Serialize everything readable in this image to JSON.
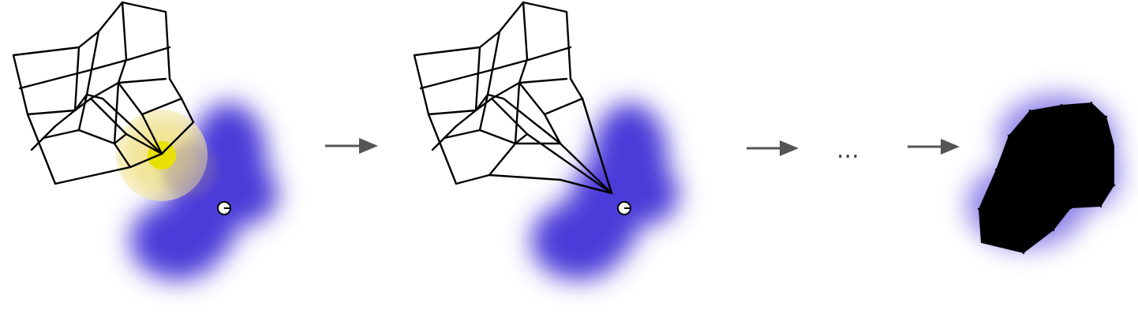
{
  "diagram": {
    "colors": {
      "background": "#ffffff",
      "target_blob": "#4b3ad8",
      "highlight_halo": "#f2e48a",
      "highlight_core": "#e8e000",
      "mesh_stroke": "#000000",
      "arrow": "#555555"
    },
    "ellipsis": "...",
    "icons": [
      "right-arrow-icon",
      "target-point-icon"
    ]
  }
}
